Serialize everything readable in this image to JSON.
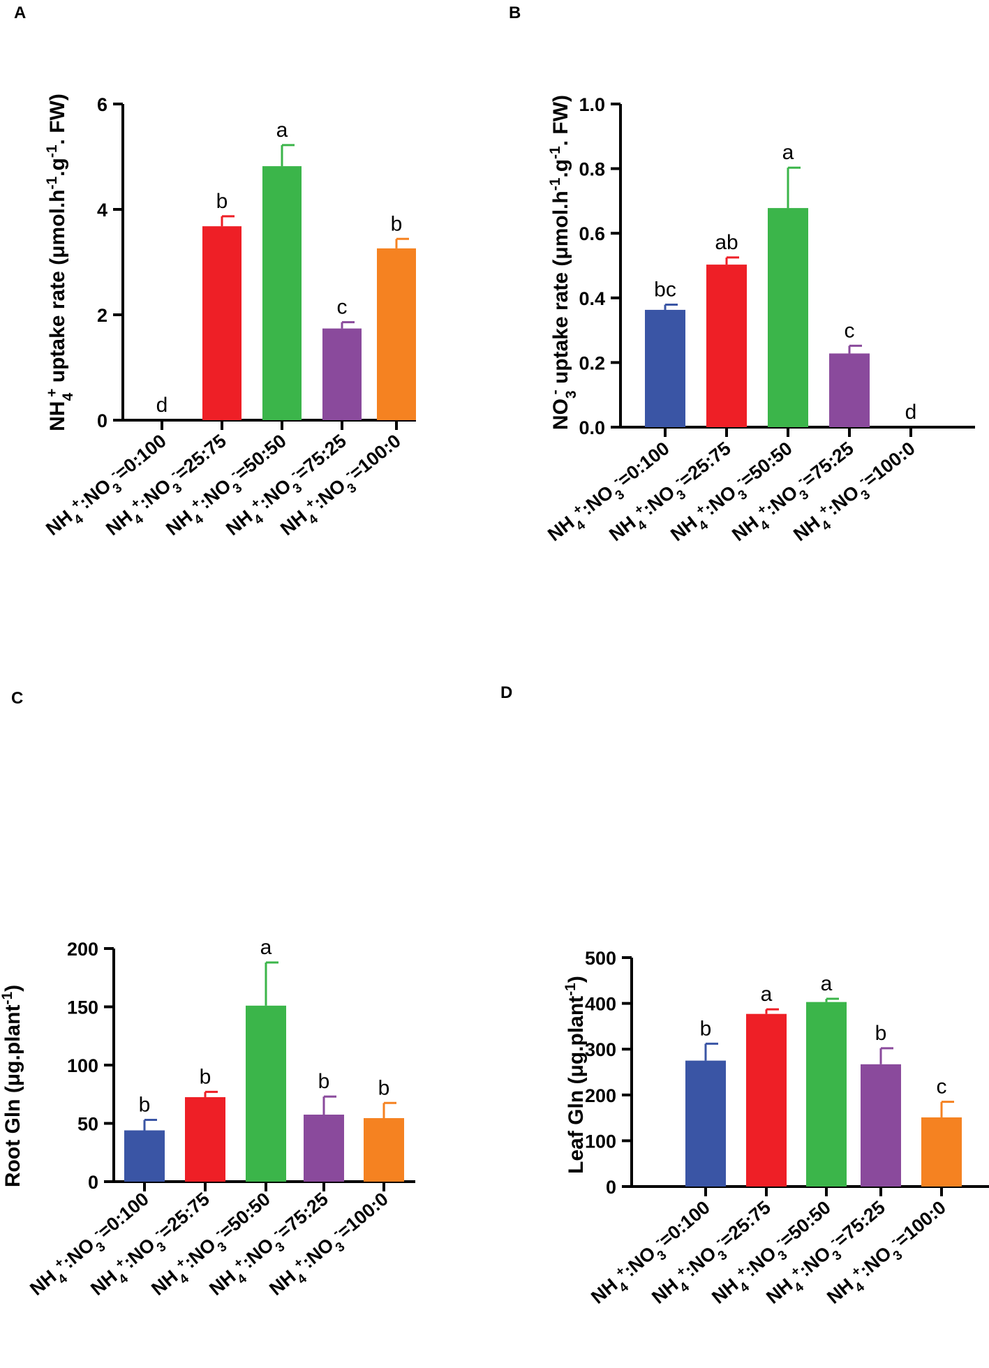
{
  "colors": {
    "blue": "#3a55a5",
    "red": "#ee1f26",
    "green": "#3bb54a",
    "purple": "#8a4a9c",
    "orange": "#f58221",
    "axis": "#000000"
  },
  "chart_data": [
    {
      "type": "bar",
      "panel_label": "A",
      "ylabel": {
        "pre": "NH",
        "sub": "4",
        "sup": "+",
        "post": " uptake rate (μmol.h",
        "sup2": "-1",
        "mid": ".g",
        "sup3": "-1",
        "end": ". FW)"
      },
      "ylim": [
        0,
        6
      ],
      "yticks": [
        0,
        2,
        4,
        6
      ],
      "tick_labels": [
        "0",
        "2",
        "4",
        "6"
      ],
      "categories": [
        "NH4+:NO3-=0:100",
        "NH4+:NO3-=25:75",
        "NH4+:NO3-=50:50",
        "NH4+:NO3-=75:25",
        "NH4+:NO3-=100:0"
      ],
      "ratios": [
        "0:100",
        "25:75",
        "50:50",
        "75:25",
        "100:0"
      ],
      "cat_parts": {
        "nh": "NH",
        "four": "4",
        "plus": "+",
        "colon": ":NO",
        "three": "3",
        "minus": "-",
        "eq": "="
      },
      "values": [
        0,
        3.68,
        4.82,
        1.74,
        3.26
      ],
      "errors": [
        0,
        0.19,
        0.4,
        0.12,
        0.18
      ],
      "letters": [
        "d",
        "b",
        "a",
        "c",
        "b"
      ]
    },
    {
      "type": "bar",
      "panel_label": "B",
      "ylabel": {
        "pre": "NO",
        "sub": "3",
        "sup": "-",
        "post": " uptake rate (μmol.h",
        "sup2": "-1",
        "mid": ".g",
        "sup3": "-1",
        "end": ". FW)"
      },
      "ylim": [
        0,
        1.0
      ],
      "yticks": [
        0,
        0.2,
        0.4,
        0.6,
        0.8,
        1.0
      ],
      "tick_labels": [
        "0.0",
        "0.2",
        "0.4",
        "0.6",
        "0.8",
        "1.0"
      ],
      "categories": [
        "NH4+:NO3-=0:100",
        "NH4+:NO3-=25:75",
        "NH4+:NO3-=50:50",
        "NH4+:NO3-=75:25",
        "NH4+:NO3-=100:0"
      ],
      "ratios": [
        "0:100",
        "25:75",
        "50:50",
        "75:25",
        "100:0"
      ],
      "cat_parts": {
        "nh": "NH",
        "four": "4",
        "plus": "+",
        "colon": ":NO",
        "three": "3",
        "minus": "-",
        "eq": "="
      },
      "values": [
        0.363,
        0.503,
        0.678,
        0.228,
        0
      ],
      "errors": [
        0.016,
        0.022,
        0.125,
        0.024,
        0
      ],
      "letters": [
        "bc",
        "ab",
        "a",
        "c",
        "d"
      ]
    },
    {
      "type": "bar",
      "panel_label": "C",
      "ylabel": {
        "pre": "Root Gln (μg.plant",
        "sup": "-1",
        "post": ")"
      },
      "ylim": [
        0,
        200
      ],
      "yticks": [
        0,
        50,
        100,
        150,
        200
      ],
      "tick_labels": [
        "0",
        "50",
        "100",
        "150",
        "200"
      ],
      "categories": [
        "NH4+:NO3-=0:100",
        "NH4+:NO3-=25:75",
        "NH4+:NO3-=50:50",
        "NH4+:NO3-=75:25",
        "NH4+:NO3-=100:0"
      ],
      "ratios": [
        "0:100",
        "25:75",
        "50:50",
        "75:25",
        "100:0"
      ],
      "cat_parts": {
        "nh": "NH",
        "four": "4",
        "plus": "+",
        "colon": ":NO",
        "three": "3",
        "minus": "-",
        "eq": "="
      },
      "values": [
        44,
        72.5,
        151,
        57.5,
        54.5
      ],
      "errors": [
        9,
        4.5,
        37,
        15.5,
        13
      ],
      "letters": [
        "b",
        "b",
        "a",
        "b",
        "b"
      ]
    },
    {
      "type": "bar",
      "panel_label": "D",
      "ylabel": {
        "pre": "Leaf Gln (μg.plant",
        "sup": "-1",
        "post": ")"
      },
      "ylim": [
        0,
        500
      ],
      "yticks": [
        0,
        100,
        200,
        300,
        400,
        500
      ],
      "tick_labels": [
        "0",
        "100",
        "200",
        "300",
        "400",
        "500"
      ],
      "categories": [
        "NH4+:NO3-=0:100",
        "NH4+:NO3-=25:75",
        "NH4+:NO3-=50:50",
        "NH4+:NO3-=75:25",
        "NH4+:NO3-=100:0"
      ],
      "ratios": [
        "0:100",
        "25:75",
        "50:50",
        "75:25",
        "100:0"
      ],
      "cat_parts": {
        "nh": "NH",
        "four": "4",
        "plus": "+",
        "colon": ":NO",
        "three": "3",
        "minus": "-",
        "eq": "="
      },
      "values": [
        275,
        377,
        403,
        267,
        151
      ],
      "errors": [
        37,
        10,
        7,
        35,
        34
      ],
      "letters": [
        "b",
        "a",
        "a",
        "b",
        "c"
      ]
    }
  ]
}
